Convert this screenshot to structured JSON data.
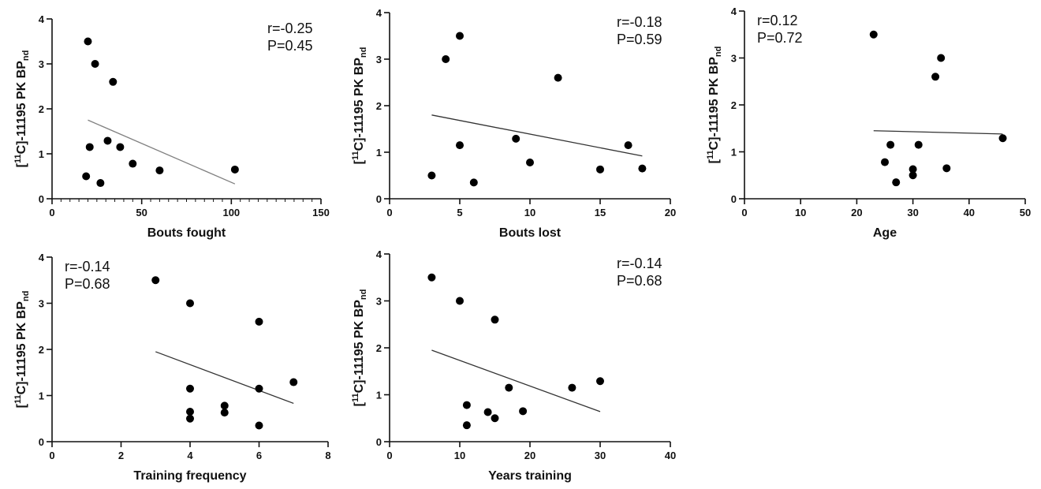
{
  "y_axis_label": {
    "bracket_open": "[",
    "superscript": "11",
    "main": "C]-11195 PK BP",
    "subscript": "nd"
  },
  "chart_data": [
    {
      "type": "scatter",
      "xlabel": "Bouts fought",
      "xlim": [
        0,
        150
      ],
      "xticks": [
        0,
        50,
        100,
        150
      ],
      "x_minor_step": 5,
      "ylim": [
        0,
        4
      ],
      "yticks": [
        0,
        1,
        2,
        3,
        4
      ],
      "stats": {
        "r": "r=-0.25",
        "p": "P=0.45"
      },
      "stats_position": "top-right",
      "points": [
        [
          20,
          3.5
        ],
        [
          24,
          3.0
        ],
        [
          34,
          2.6
        ],
        [
          31,
          1.29
        ],
        [
          21,
          1.15
        ],
        [
          38,
          1.15
        ],
        [
          45,
          0.78
        ],
        [
          60,
          0.63
        ],
        [
          102,
          0.65
        ],
        [
          19,
          0.5
        ],
        [
          27,
          0.35
        ]
      ],
      "fit": {
        "x": [
          20,
          102
        ],
        "y": [
          1.75,
          0.33
        ]
      },
      "fit_color": "#808080"
    },
    {
      "type": "scatter",
      "xlabel": "Bouts lost",
      "xlim": [
        0,
        20
      ],
      "xticks": [
        0,
        5,
        10,
        15,
        20
      ],
      "ylim": [
        0,
        4
      ],
      "yticks": [
        0,
        1,
        2,
        3,
        4
      ],
      "stats": {
        "r": "r=-0.18",
        "p": "P=0.59"
      },
      "stats_position": "top-right",
      "points": [
        [
          5,
          3.5
        ],
        [
          4,
          3.0
        ],
        [
          12,
          2.6
        ],
        [
          9,
          1.29
        ],
        [
          5,
          1.15
        ],
        [
          17,
          1.15
        ],
        [
          10,
          0.78
        ],
        [
          15,
          0.63
        ],
        [
          18,
          0.65
        ],
        [
          3,
          0.5
        ],
        [
          6,
          0.35
        ]
      ],
      "fit": {
        "x": [
          3,
          18
        ],
        "y": [
          1.8,
          0.92
        ]
      },
      "fit_color": "#333333"
    },
    {
      "type": "scatter",
      "xlabel": "Age",
      "xlim": [
        0,
        50
      ],
      "xticks": [
        0,
        10,
        20,
        30,
        40,
        50
      ],
      "ylim": [
        0,
        4
      ],
      "yticks": [
        0,
        1,
        2,
        3,
        4
      ],
      "stats": {
        "r": "r=0.12",
        "p": "P=0.72"
      },
      "stats_position": "top-left",
      "points": [
        [
          23,
          3.5
        ],
        [
          35,
          3.0
        ],
        [
          34,
          2.6
        ],
        [
          46,
          1.29
        ],
        [
          26,
          1.15
        ],
        [
          31,
          1.15
        ],
        [
          25,
          0.78
        ],
        [
          30,
          0.63
        ],
        [
          36,
          0.65
        ],
        [
          30,
          0.5
        ],
        [
          27,
          0.35
        ]
      ],
      "fit": {
        "x": [
          23,
          46
        ],
        "y": [
          1.45,
          1.38
        ]
      },
      "fit_color": "#333333"
    },
    {
      "type": "scatter",
      "xlabel": "Training frequency",
      "xlim": [
        0,
        8
      ],
      "xticks": [
        0,
        2,
        4,
        6,
        8
      ],
      "ylim": [
        0,
        4
      ],
      "yticks": [
        0,
        1,
        2,
        3,
        4
      ],
      "stats": {
        "r": "r=-0.14",
        "p": "P=0.68"
      },
      "stats_position": "top-left",
      "points": [
        [
          3,
          3.5
        ],
        [
          4,
          3.0
        ],
        [
          6,
          2.6
        ],
        [
          7,
          1.29
        ],
        [
          4,
          1.15
        ],
        [
          6,
          1.15
        ],
        [
          5,
          0.78
        ],
        [
          5,
          0.63
        ],
        [
          4,
          0.65
        ],
        [
          4,
          0.5
        ],
        [
          6,
          0.35
        ]
      ],
      "fit": {
        "x": [
          3,
          7
        ],
        "y": [
          1.95,
          0.83
        ]
      },
      "fit_color": "#333333"
    },
    {
      "type": "scatter",
      "xlabel": "Years training",
      "xlim": [
        0,
        40
      ],
      "xticks": [
        0,
        10,
        20,
        30,
        40
      ],
      "ylim": [
        0,
        4
      ],
      "yticks": [
        0,
        1,
        2,
        3,
        4
      ],
      "stats": {
        "r": "r=-0.14",
        "p": "P=0.68"
      },
      "stats_position": "top-right",
      "points": [
        [
          6,
          3.5
        ],
        [
          10,
          3.0
        ],
        [
          15,
          2.6
        ],
        [
          30,
          1.29
        ],
        [
          17,
          1.15
        ],
        [
          26,
          1.15
        ],
        [
          11,
          0.78
        ],
        [
          14,
          0.63
        ],
        [
          19,
          0.65
        ],
        [
          15,
          0.5
        ],
        [
          11,
          0.35
        ]
      ],
      "fit": {
        "x": [
          6,
          30
        ],
        "y": [
          1.95,
          0.64
        ]
      },
      "fit_color": "#333333"
    }
  ]
}
